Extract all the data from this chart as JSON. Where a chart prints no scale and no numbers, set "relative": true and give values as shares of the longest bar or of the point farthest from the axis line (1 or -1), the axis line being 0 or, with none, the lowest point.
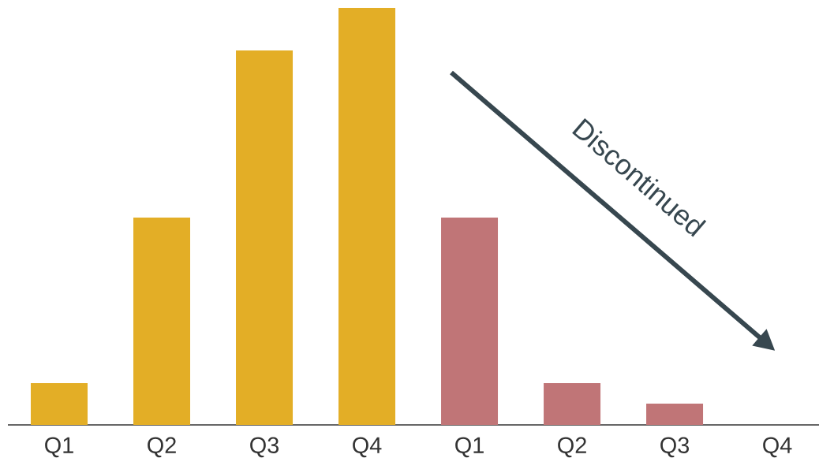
{
  "chart_data": {
    "type": "bar",
    "relative": true,
    "categories": [
      "Q1",
      "Q2",
      "Q3",
      "Q4",
      "Q1",
      "Q2",
      "Q3",
      "Q4"
    ],
    "values": [
      0.1,
      0.497,
      0.898,
      1,
      0.497,
      0.1,
      0.051,
      0
    ],
    "colors": [
      "#e3ae26",
      "#e3ae26",
      "#e3ae26",
      "#e3ae26",
      "#c07577",
      "#c07577",
      "#c07577",
      "#c07577"
    ],
    "annotations": [
      "Discontinued"
    ]
  }
}
